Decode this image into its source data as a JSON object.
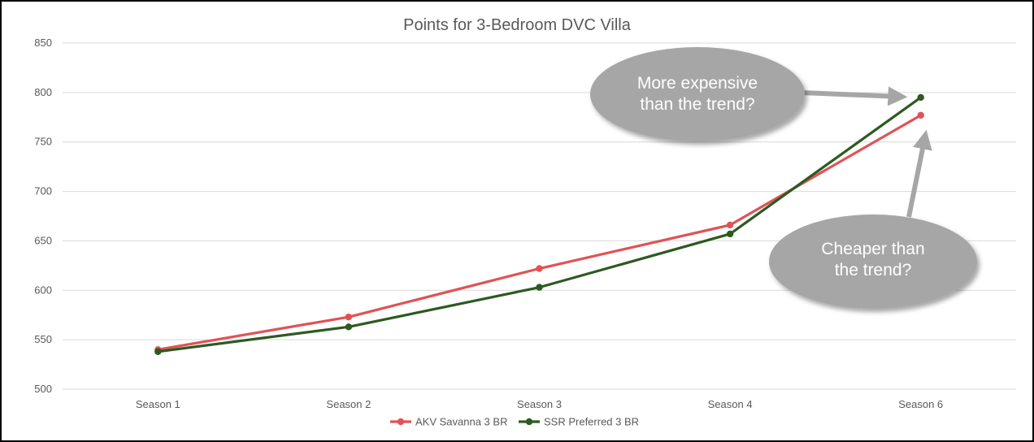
{
  "chart_data": {
    "type": "line",
    "title": "Points for 3-Bedroom DVC Villa",
    "categories": [
      "Season 1",
      "Season 2",
      "Season 3",
      "Season 4",
      "Season 6"
    ],
    "ylim": [
      500,
      850
    ],
    "yticks": [
      500,
      550,
      600,
      650,
      700,
      750,
      800,
      850
    ],
    "grid": true,
    "legend_position": "bottom",
    "series": [
      {
        "name": "AKV Savanna 3 BR",
        "color": "#e05256",
        "values": [
          540,
          573,
          622,
          666,
          777
        ]
      },
      {
        "name": "SSR Preferred 3 BR",
        "color": "#2c5a21",
        "values": [
          538,
          563,
          603,
          657,
          795
        ]
      }
    ],
    "annotations": [
      {
        "lines": [
          "More expensive",
          "than the trend?"
        ],
        "points_to": "SSR Preferred 3 BR, Season 6"
      },
      {
        "lines": [
          "Cheaper than",
          "the trend?"
        ],
        "points_to": "AKV Savanna 3 BR, Season 6"
      }
    ],
    "callout_color": "#a6a6a6",
    "arrow_color": "#a6a6a6"
  }
}
